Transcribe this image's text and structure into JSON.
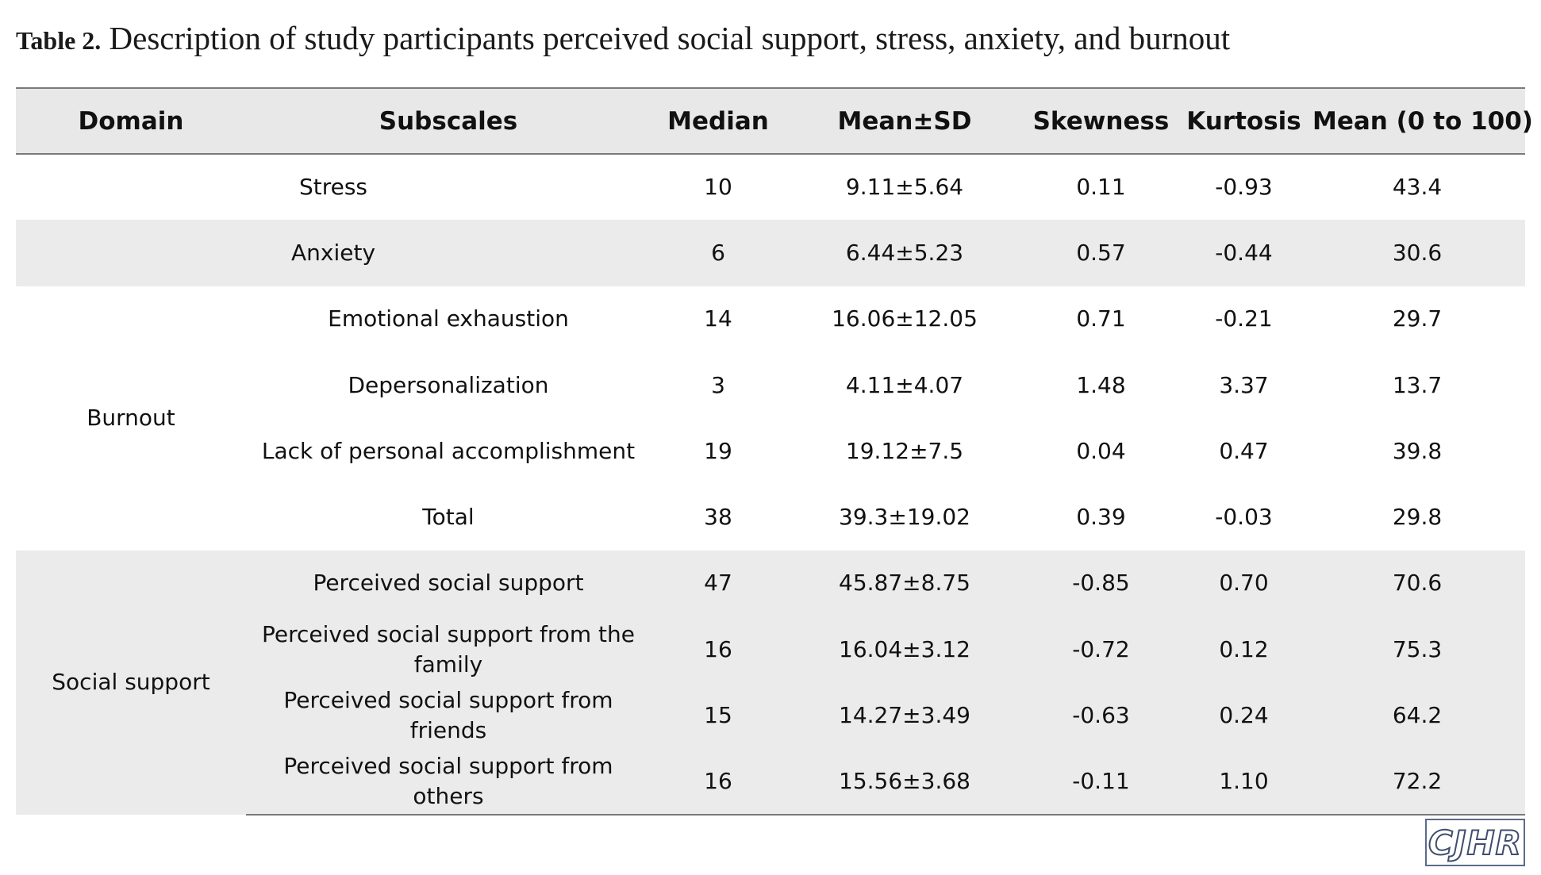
{
  "caption": {
    "label": "Table 2.",
    "text": " Description of study participants perceived social support, stress, anxiety, and burnout"
  },
  "table": {
    "headers": [
      "Domain",
      "Subscales",
      "Median",
      "Mean±SD",
      "Skewness",
      "Kurtosis",
      "Mean (0 to 100)"
    ],
    "domains": {
      "burnout": "Burnout",
      "social_support": "Social support"
    },
    "rows": [
      {
        "subscale": "Stress",
        "median": "10",
        "mean_sd": "9.11±5.64",
        "skewness": "0.11",
        "kurtosis": "-0.93",
        "mean100": "43.4"
      },
      {
        "subscale": "Anxiety",
        "median": "6",
        "mean_sd": "6.44±5.23",
        "skewness": "0.57",
        "kurtosis": "-0.44",
        "mean100": "30.6"
      },
      {
        "subscale": "Emotional exhaustion",
        "median": "14",
        "mean_sd": "16.06±12.05",
        "skewness": "0.71",
        "kurtosis": "-0.21",
        "mean100": "29.7"
      },
      {
        "subscale": "Depersonalization",
        "median": "3",
        "mean_sd": "4.11±4.07",
        "skewness": "1.48",
        "kurtosis": "3.37",
        "mean100": "13.7"
      },
      {
        "subscale": "Lack of personal accomplishment",
        "median": "19",
        "mean_sd": "19.12±7.5",
        "skewness": "0.04",
        "kurtosis": "0.47",
        "mean100": "39.8"
      },
      {
        "subscale": "Total",
        "median": "38",
        "mean_sd": "39.3±19.02",
        "skewness": "0.39",
        "kurtosis": "-0.03",
        "mean100": "29.8"
      },
      {
        "subscale": "Perceived social support",
        "median": "47",
        "mean_sd": "45.87±8.75",
        "skewness": "-0.85",
        "kurtosis": "0.70",
        "mean100": "70.6"
      },
      {
        "subscale": "Perceived social support from the family",
        "median": "16",
        "mean_sd": "16.04±3.12",
        "skewness": "-0.72",
        "kurtosis": "0.12",
        "mean100": "75.3"
      },
      {
        "subscale": "Perceived social support from friends",
        "median": "15",
        "mean_sd": "14.27±3.49",
        "skewness": "-0.63",
        "kurtosis": "0.24",
        "mean100": "64.2"
      },
      {
        "subscale": "Perceived social support from others",
        "median": "16",
        "mean_sd": "15.56±3.68",
        "skewness": "-0.11",
        "kurtosis": "1.10",
        "mean100": "72.2"
      }
    ]
  },
  "logo": {
    "text": "CJHR"
  },
  "colors": {
    "header_bg": "#e8e8e8",
    "band_bg": "#ebebeb",
    "rule": "#7a7a7a"
  }
}
